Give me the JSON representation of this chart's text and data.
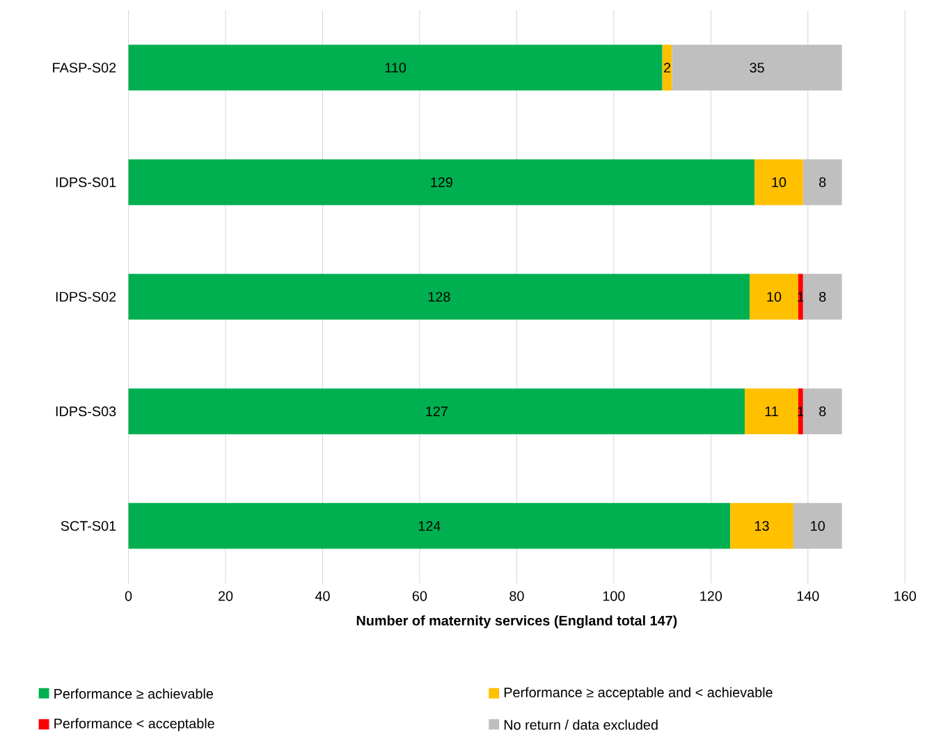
{
  "chart_data": {
    "type": "bar",
    "orientation": "horizontal",
    "stacked": true,
    "categories": [
      "FASP-S02",
      "IDPS-S01",
      "IDPS-S02",
      "IDPS-S03",
      "SCT-S01"
    ],
    "series": [
      {
        "name": "Performance ≥ achievable",
        "color": "#00b050",
        "values": [
          110,
          129,
          128,
          127,
          124
        ]
      },
      {
        "name": "Performance ≥ acceptable and < achievable",
        "color": "#ffc000",
        "values": [
          2,
          10,
          10,
          11,
          13
        ]
      },
      {
        "name": "Performance < acceptable",
        "color": "#ff0000",
        "values": [
          null,
          null,
          1,
          1,
          null
        ]
      },
      {
        "name": "No return / data excluded",
        "color": "#bfbfbf",
        "values": [
          35,
          8,
          8,
          8,
          10
        ]
      }
    ],
    "xlim": [
      0,
      160
    ],
    "xticks": [
      0,
      20,
      40,
      60,
      80,
      100,
      120,
      140,
      160
    ],
    "xlabel": "Number of maternity services (England total 147)",
    "grid": "x",
    "legend": "bottom",
    "data_labels": true
  }
}
